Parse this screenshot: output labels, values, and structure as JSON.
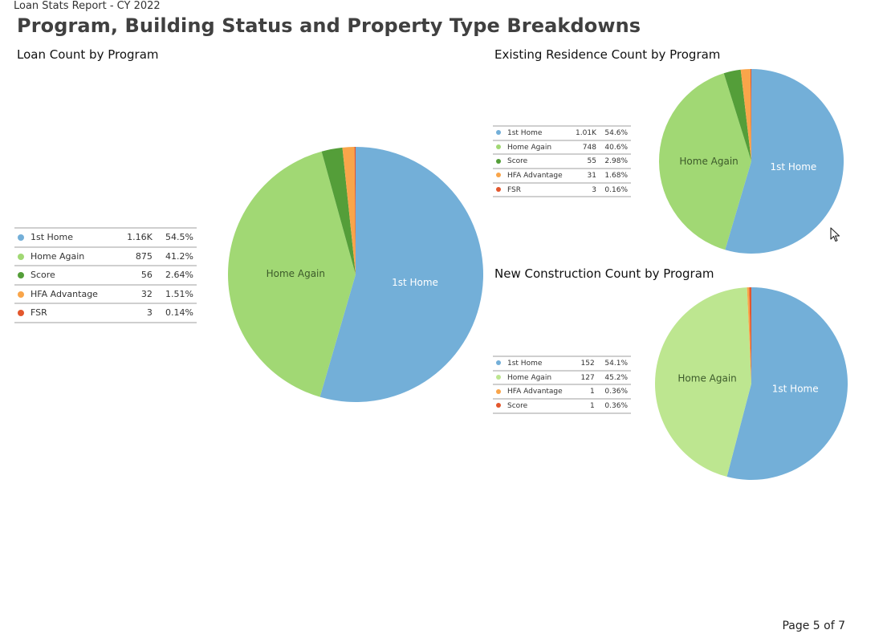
{
  "header": {
    "report_label": "Loan Stats Report - CY 2022",
    "title": "Program, Building Status and Property Type Breakdowns"
  },
  "footer": {
    "page": "Page 5 of 7"
  },
  "chart_data": [
    {
      "id": "loan",
      "type": "pie",
      "title": "Loan Count by Program",
      "legend_position": "left",
      "slices": [
        {
          "name": "1st Home",
          "value": 1160,
          "value_label": "1.16K",
          "percent": 54.5,
          "percent_label": "54.5%",
          "color": "#73afd8",
          "pie_label": "1st Home"
        },
        {
          "name": "Home Again",
          "value": 875,
          "value_label": "875",
          "percent": 41.2,
          "percent_label": "41.2%",
          "color": "#a1d874",
          "pie_label": "Home Again"
        },
        {
          "name": "Score",
          "value": 56,
          "value_label": "56",
          "percent": 2.64,
          "percent_label": "2.64%",
          "color": "#549e39",
          "pie_label": ""
        },
        {
          "name": "HFA Advantage",
          "value": 32,
          "value_label": "32",
          "percent": 1.51,
          "percent_label": "1.51%",
          "color": "#f9a54a",
          "pie_label": ""
        },
        {
          "name": "FSR",
          "value": 3,
          "value_label": "3",
          "percent": 0.14,
          "percent_label": "0.14%",
          "color": "#e3572d",
          "pie_label": ""
        }
      ]
    },
    {
      "id": "existing",
      "type": "pie",
      "title": "Existing Residence Count by Program",
      "legend_position": "left",
      "slices": [
        {
          "name": "1st Home",
          "value": 1010,
          "value_label": "1.01K",
          "percent": 54.6,
          "percent_label": "54.6%",
          "color": "#73afd8",
          "pie_label": "1st Home"
        },
        {
          "name": "Home Again",
          "value": 748,
          "value_label": "748",
          "percent": 40.6,
          "percent_label": "40.6%",
          "color": "#a1d874",
          "pie_label": "Home Again"
        },
        {
          "name": "Score",
          "value": 55,
          "value_label": "55",
          "percent": 2.98,
          "percent_label": "2.98%",
          "color": "#549e39",
          "pie_label": ""
        },
        {
          "name": "HFA Advantage",
          "value": 31,
          "value_label": "31",
          "percent": 1.68,
          "percent_label": "1.68%",
          "color": "#f9a54a",
          "pie_label": ""
        },
        {
          "name": "FSR",
          "value": 3,
          "value_label": "3",
          "percent": 0.16,
          "percent_label": "0.16%",
          "color": "#e3572d",
          "pie_label": ""
        }
      ]
    },
    {
      "id": "newcon",
      "type": "pie",
      "title": "New Construction Count by Program",
      "legend_position": "left",
      "slices": [
        {
          "name": "1st Home",
          "value": 152,
          "value_label": "152",
          "percent": 54.1,
          "percent_label": "54.1%",
          "color": "#73afd8",
          "pie_label": "1st Home"
        },
        {
          "name": "Home Again",
          "value": 127,
          "value_label": "127",
          "percent": 45.2,
          "percent_label": "45.2%",
          "color": "#bde690",
          "pie_label": "Home Again"
        },
        {
          "name": "HFA Advantage",
          "value": 1,
          "value_label": "1",
          "percent": 0.36,
          "percent_label": "0.36%",
          "color": "#f9a54a",
          "pie_label": ""
        },
        {
          "name": "Score",
          "value": 1,
          "value_label": "1",
          "percent": 0.36,
          "percent_label": "0.36%",
          "color": "#e3572d",
          "pie_label": ""
        }
      ]
    }
  ]
}
